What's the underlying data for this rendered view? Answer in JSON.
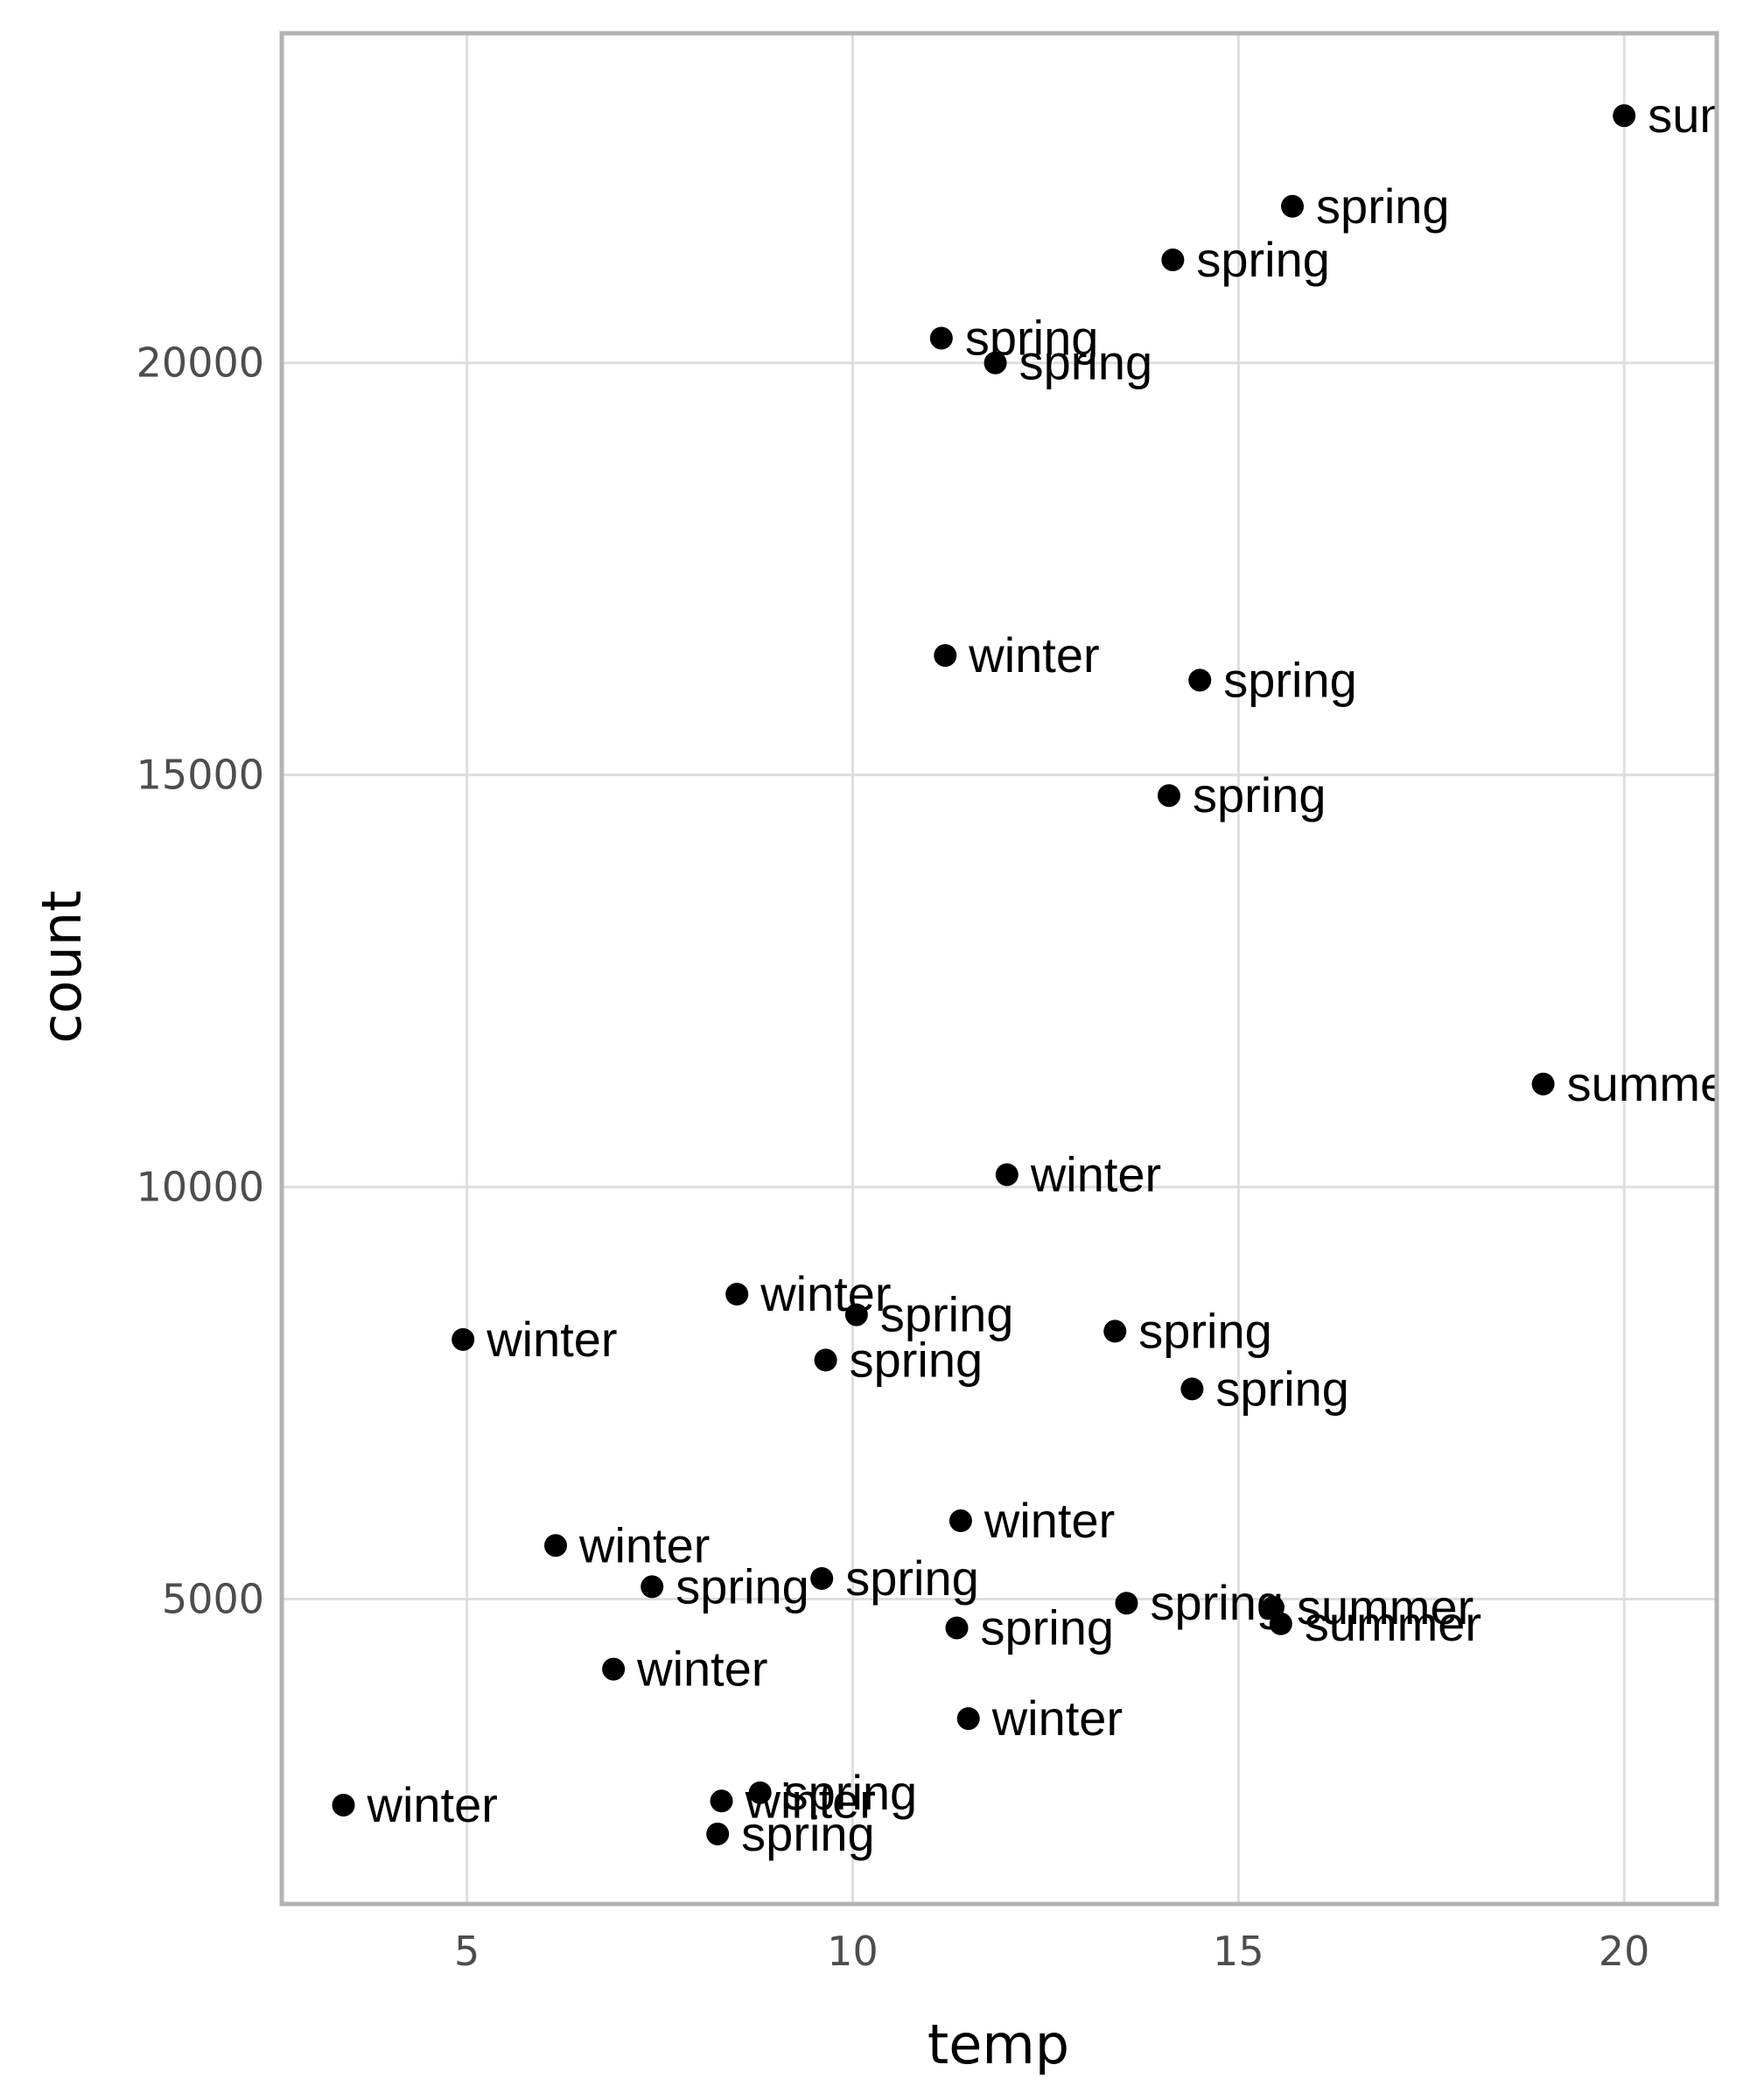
{
  "chart_data": {
    "type": "scatter",
    "title": "",
    "xlabel": "temp",
    "ylabel": "count",
    "xlim": [
      2.6,
      21.2
    ],
    "ylim": [
      1300,
      24000
    ],
    "xticks": [
      5,
      10,
      15,
      20
    ],
    "yticks": [
      5000,
      10000,
      15000,
      20000
    ],
    "xtick_labels": [
      "5",
      "10",
      "15",
      "20"
    ],
    "ytick_labels": [
      "5000",
      "10000",
      "15000",
      "20000"
    ],
    "grid": true,
    "legend": "none",
    "colors": {
      "point": "#000000",
      "grid": "#dedede",
      "border": "#b3b3b3",
      "tick_text": "#4d4d4d"
    },
    "points": [
      {
        "x": 20.0,
        "y": 23000,
        "label": "summer"
      },
      {
        "x": 15.7,
        "y": 21900,
        "label": "spring"
      },
      {
        "x": 14.15,
        "y": 21250,
        "label": "spring"
      },
      {
        "x": 11.15,
        "y": 20300,
        "label": "spring"
      },
      {
        "x": 11.85,
        "y": 20000,
        "label": "spring"
      },
      {
        "x": 11.2,
        "y": 16450,
        "label": "winter"
      },
      {
        "x": 14.5,
        "y": 16150,
        "label": "spring"
      },
      {
        "x": 14.1,
        "y": 14750,
        "label": "spring"
      },
      {
        "x": 18.95,
        "y": 11250,
        "label": "summer"
      },
      {
        "x": 12.0,
        "y": 10150,
        "label": "winter"
      },
      {
        "x": 8.5,
        "y": 8700,
        "label": "winter"
      },
      {
        "x": 10.05,
        "y": 8450,
        "label": "spring"
      },
      {
        "x": 4.95,
        "y": 8150,
        "label": "winter"
      },
      {
        "x": 13.4,
        "y": 8250,
        "label": "spring"
      },
      {
        "x": 9.65,
        "y": 7900,
        "label": "spring"
      },
      {
        "x": 14.4,
        "y": 7550,
        "label": "spring"
      },
      {
        "x": 11.4,
        "y": 5950,
        "label": "winter"
      },
      {
        "x": 6.15,
        "y": 5650,
        "label": "winter"
      },
      {
        "x": 9.6,
        "y": 5250,
        "label": "spring"
      },
      {
        "x": 7.4,
        "y": 5150,
        "label": "spring"
      },
      {
        "x": 13.55,
        "y": 4950,
        "label": "spring"
      },
      {
        "x": 15.45,
        "y": 4900,
        "label": "summer"
      },
      {
        "x": 15.55,
        "y": 4700,
        "label": "summer"
      },
      {
        "x": 11.35,
        "y": 4650,
        "label": "spring"
      },
      {
        "x": 6.9,
        "y": 4150,
        "label": "winter"
      },
      {
        "x": 11.5,
        "y": 3550,
        "label": "winter"
      },
      {
        "x": 8.8,
        "y": 2650,
        "label": "spring"
      },
      {
        "x": 8.3,
        "y": 2550,
        "label": "winter"
      },
      {
        "x": 3.4,
        "y": 2500,
        "label": "winter"
      },
      {
        "x": 8.25,
        "y": 2150,
        "label": "spring"
      }
    ]
  }
}
